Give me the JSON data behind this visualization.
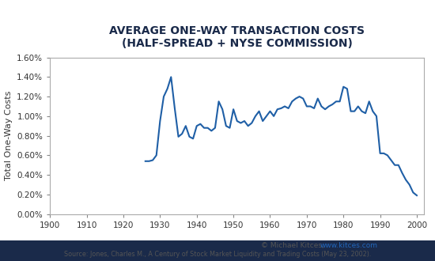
{
  "title_line1": "AVERAGE ONE-WAY TRANSACTION COSTS",
  "title_line2": "(HALF-SPREAD + NYSE COMMISSION)",
  "ylabel": "Total One-Way Costs",
  "background_color": "#ffffff",
  "outer_border_color": "#1a2a4a",
  "title_color": "#1a2a4a",
  "line_color": "#1f5fa6",
  "annotation_color": "#555555",
  "url_color": "#2266bb",
  "xlim": [
    1900,
    2002
  ],
  "ylim": [
    0.0,
    0.016
  ],
  "xticks": [
    1900,
    1910,
    1920,
    1930,
    1940,
    1950,
    1960,
    1970,
    1980,
    1990,
    2000
  ],
  "yticks": [
    0.0,
    0.002,
    0.004,
    0.006,
    0.008,
    0.01,
    0.012,
    0.014,
    0.016
  ],
  "ytick_labels": [
    "0.00%",
    "0.20%",
    "0.40%",
    "0.60%",
    "0.80%",
    "1.00%",
    "1.20%",
    "1.40%",
    "1.60%"
  ],
  "years": [
    1926,
    1927,
    1928,
    1929,
    1930,
    1931,
    1932,
    1933,
    1934,
    1935,
    1936,
    1937,
    1938,
    1939,
    1940,
    1941,
    1942,
    1943,
    1944,
    1945,
    1946,
    1947,
    1948,
    1949,
    1950,
    1951,
    1952,
    1953,
    1954,
    1955,
    1956,
    1957,
    1958,
    1959,
    1960,
    1961,
    1962,
    1963,
    1964,
    1965,
    1966,
    1967,
    1968,
    1969,
    1970,
    1971,
    1972,
    1973,
    1974,
    1975,
    1976,
    1977,
    1978,
    1979,
    1980,
    1981,
    1982,
    1983,
    1984,
    1985,
    1986,
    1987,
    1988,
    1989,
    1990,
    1991,
    1992,
    1993,
    1994,
    1995,
    1996,
    1997,
    1998,
    1999,
    2000
  ],
  "values": [
    0.0054,
    0.0054,
    0.0055,
    0.006,
    0.0095,
    0.012,
    0.0128,
    0.014,
    0.0108,
    0.0079,
    0.0082,
    0.009,
    0.0079,
    0.0077,
    0.009,
    0.0092,
    0.0088,
    0.0088,
    0.0085,
    0.0088,
    0.0115,
    0.0107,
    0.009,
    0.0088,
    0.0107,
    0.0095,
    0.0093,
    0.0095,
    0.009,
    0.0093,
    0.01,
    0.0105,
    0.0095,
    0.01,
    0.0105,
    0.01,
    0.0107,
    0.0108,
    0.011,
    0.0108,
    0.0115,
    0.0118,
    0.012,
    0.0118,
    0.011,
    0.011,
    0.0108,
    0.0118,
    0.011,
    0.0107,
    0.011,
    0.0112,
    0.0115,
    0.0115,
    0.013,
    0.0128,
    0.0105,
    0.0105,
    0.011,
    0.0105,
    0.0103,
    0.0115,
    0.0105,
    0.01,
    0.0062,
    0.0062,
    0.006,
    0.0055,
    0.005,
    0.005,
    0.0042,
    0.0035,
    0.003,
    0.0022,
    0.0019
  ],
  "footnote_text": "© Michael Kitces,",
  "footnote_url": "www.kitces.com",
  "source_text": "Source: Jones, Charles M., A Century of Stock Market Liquidity and Trading Costs (May 23, 2002)."
}
